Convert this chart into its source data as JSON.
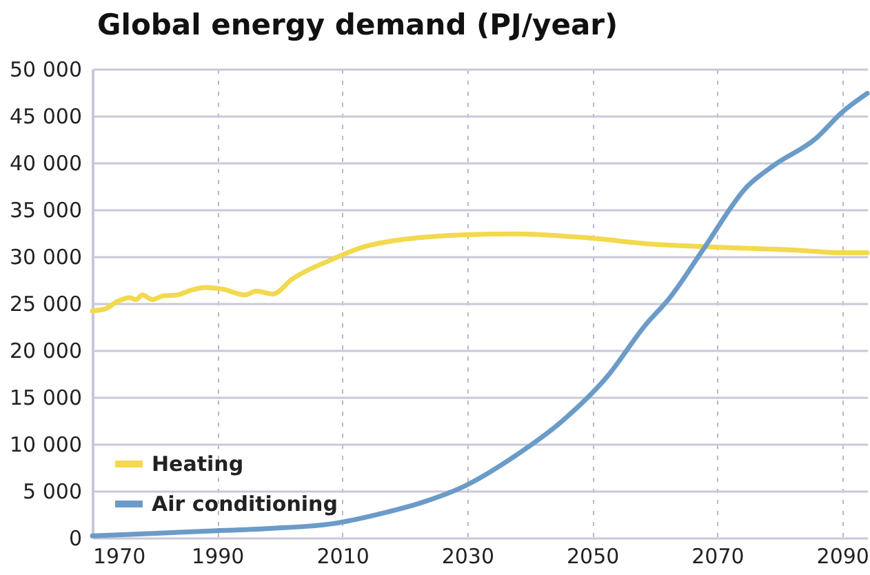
{
  "chart_data": {
    "type": "line",
    "title": "Global energy demand (PJ/year)",
    "xlim": [
      1970,
      2094
    ],
    "xticks": [
      1970,
      1990,
      2010,
      2030,
      2050,
      2070,
      2090
    ],
    "ylim": [
      0,
      50000
    ],
    "yticks": [
      {
        "value": 0,
        "label": "0"
      },
      {
        "value": 5000,
        "label": "5 000"
      },
      {
        "value": 10000,
        "label": "10 000"
      },
      {
        "value": 15000,
        "label": "15 000"
      },
      {
        "value": 20000,
        "label": "20 000"
      },
      {
        "value": 25000,
        "label": "25 000"
      },
      {
        "value": 30000,
        "label": "30 000"
      },
      {
        "value": 35000,
        "label": "35 000"
      },
      {
        "value": 40000,
        "label": "40 000"
      },
      {
        "value": 45000,
        "label": "45 000"
      },
      {
        "value": 50000,
        "label": "50 000"
      }
    ],
    "grid": true,
    "legend": "bottom left",
    "series": [
      {
        "name": "Heating",
        "color": "#f2d94e",
        "x": [
          1970,
          1972,
          1974,
          1976,
          1977,
          1978,
          1979.6,
          1981.3,
          1983.6,
          1985.8,
          1988,
          1991,
          1994.4,
          1996.2,
          1998.9,
          2002,
          2008.4,
          2013.3,
          2018.4,
          2024,
          2029,
          2038,
          2049,
          2060,
          2069.6,
          2082,
          2090,
          2094
        ],
        "values": [
          24200,
          24400,
          25200,
          25600,
          25400,
          25900,
          25400,
          25800,
          25900,
          26400,
          26700,
          26500,
          25900,
          26300,
          26000,
          27600,
          29700,
          31000,
          31700,
          32100,
          32300,
          32400,
          32000,
          31300,
          31000,
          30700,
          30400,
          30400
        ]
      },
      {
        "name": "Air conditioning",
        "color": "#6b9bc8",
        "x": [
          1970,
          1988,
          1998.4,
          2008.4,
          2016.9,
          2022.9,
          2028.9,
          2037.8,
          2045.1,
          2052.4,
          2058.4,
          2062.4,
          2068,
          2074.7,
          2079,
          2085.8,
          2090,
          2094
        ],
        "values": [
          200,
          700,
          1000,
          1500,
          2700,
          3800,
          5300,
          8800,
          12400,
          17200,
          22600,
          25600,
          31000,
          37400,
          39700,
          42600,
          45400,
          47400
        ]
      }
    ]
  }
}
